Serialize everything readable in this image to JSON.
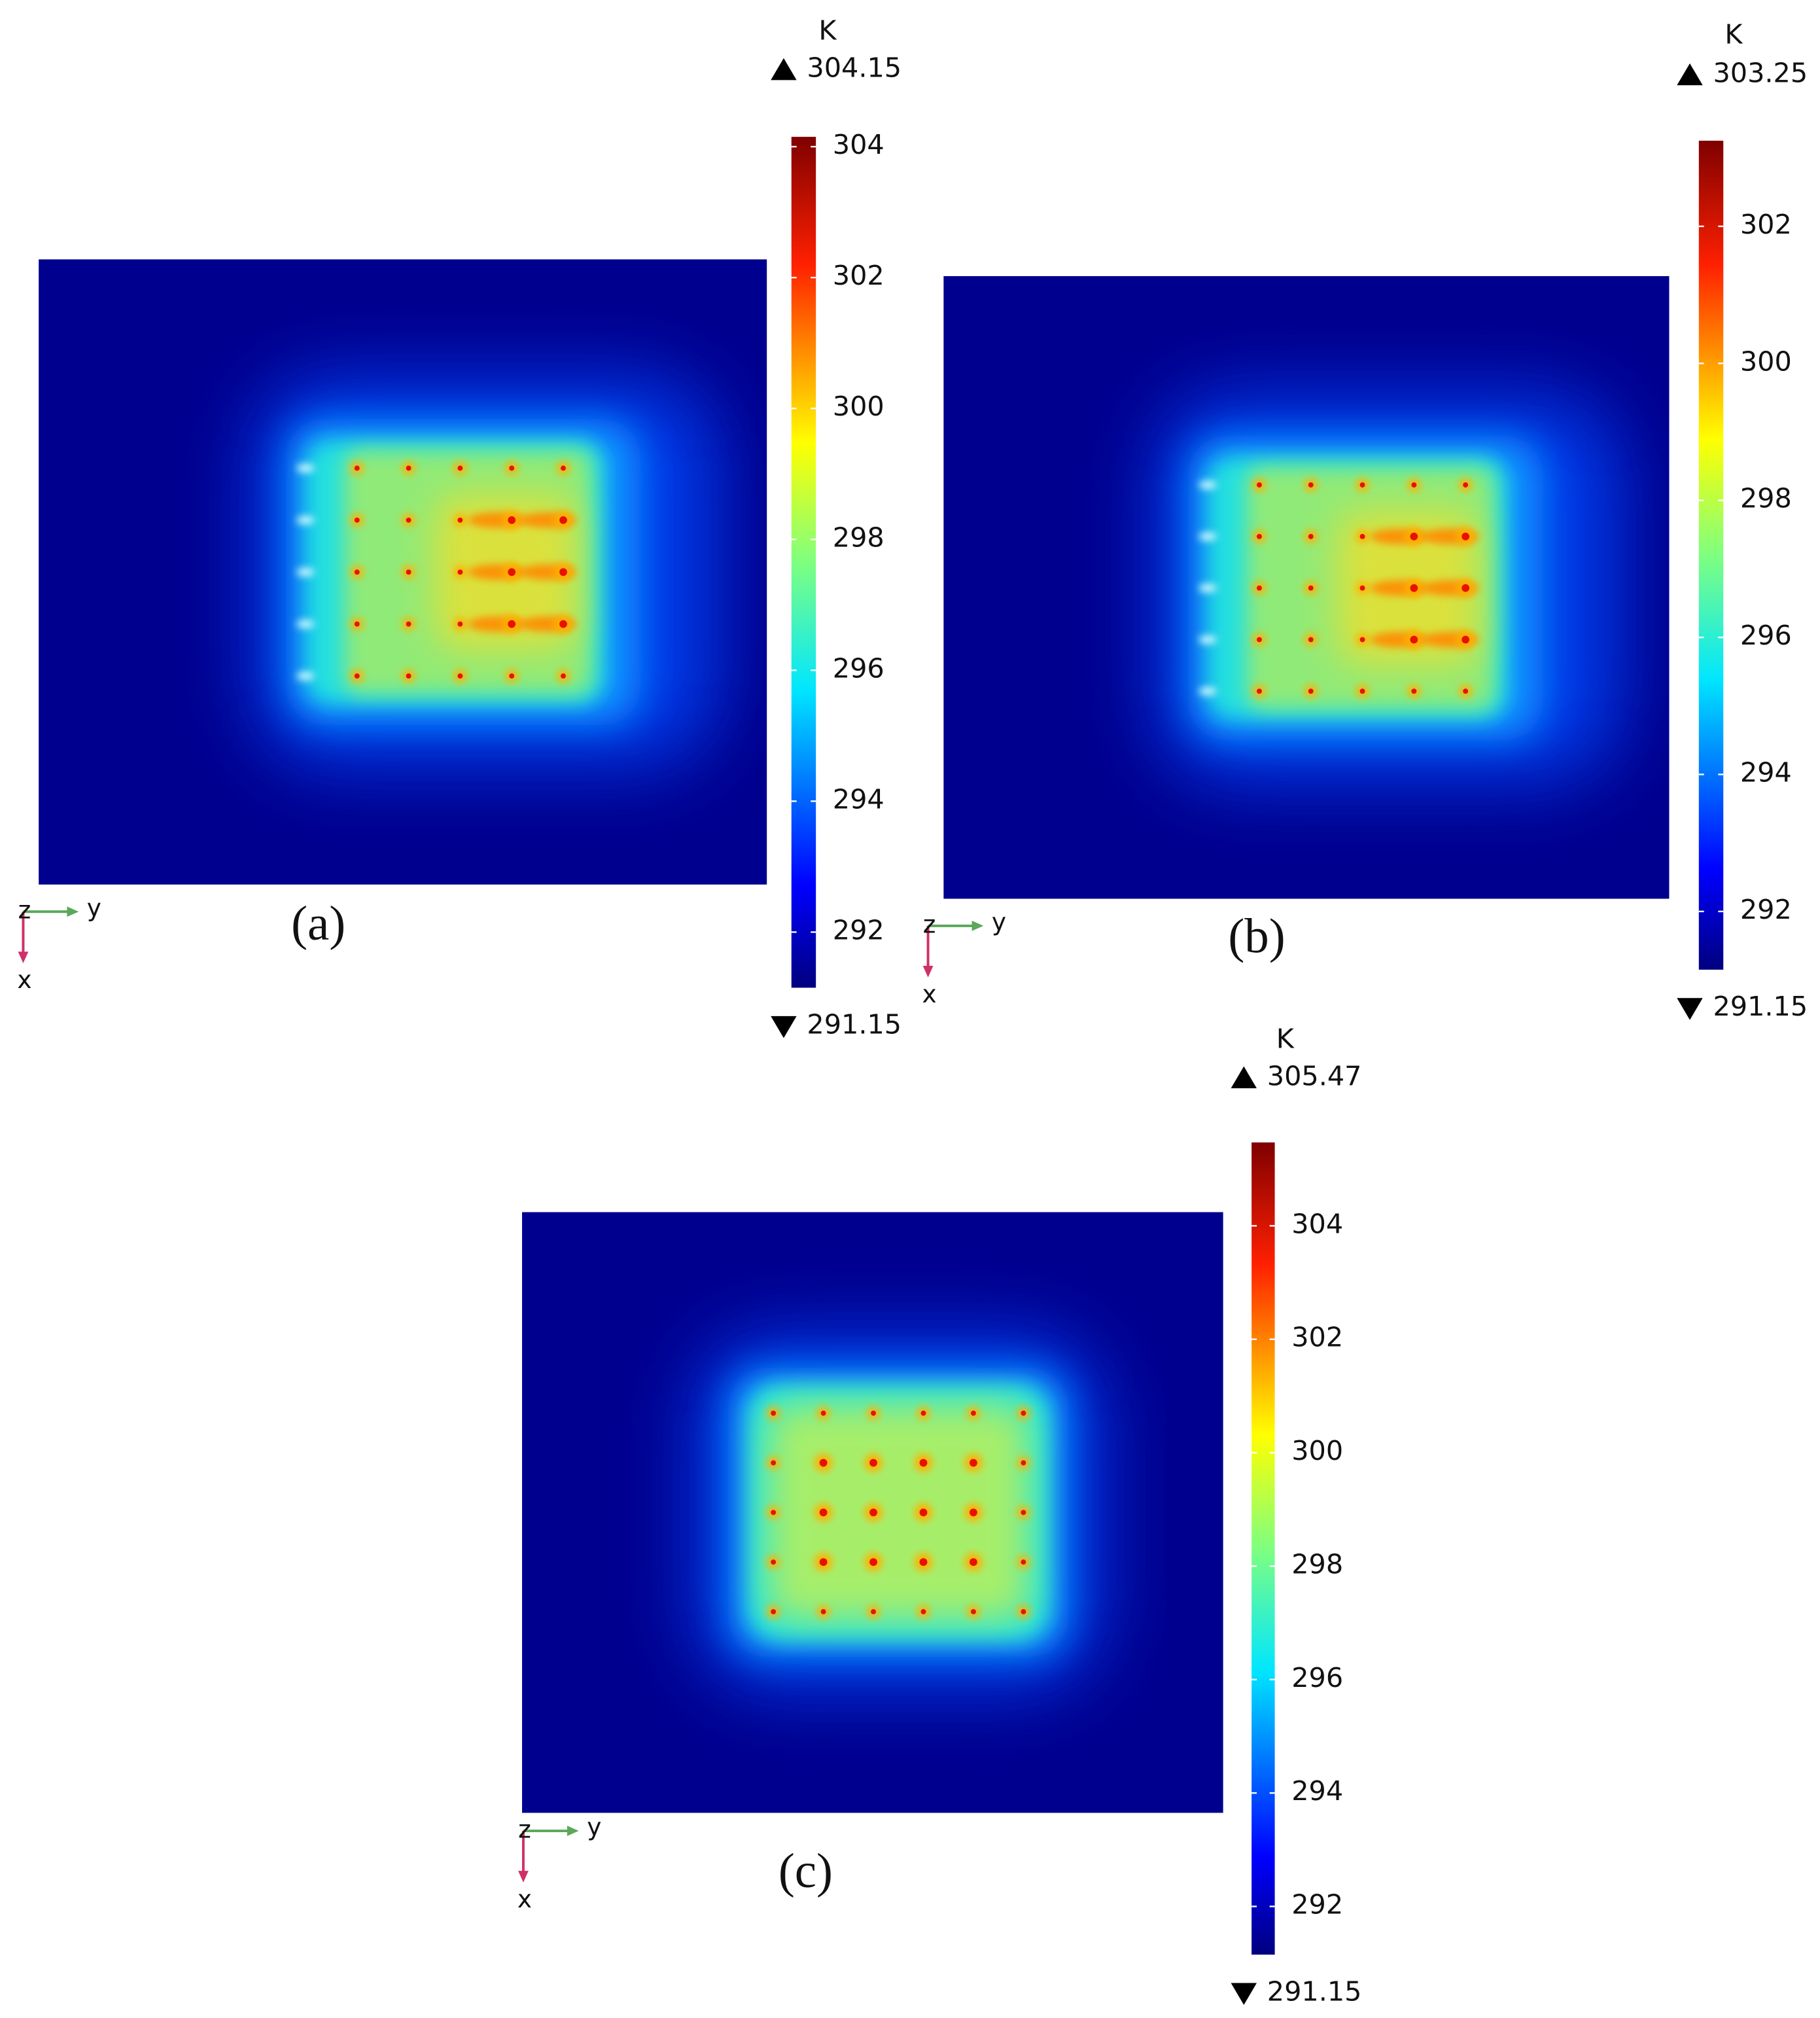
{
  "chart_data": [
    {
      "type": "heatmap",
      "label": "(a)",
      "unit": "K",
      "ylim": [
        291.15,
        304.15
      ],
      "yticks": [
        292,
        294,
        296,
        298,
        300,
        302,
        304
      ],
      "triad": [
        "z",
        "y",
        "x"
      ]
    },
    {
      "type": "heatmap",
      "label": "(b)",
      "unit": "K",
      "ylim": [
        291.15,
        303.25
      ],
      "yticks": [
        292,
        294,
        296,
        298,
        300,
        302
      ],
      "triad": [
        "z",
        "y",
        "x"
      ]
    },
    {
      "type": "heatmap",
      "label": "(c)",
      "unit": "K",
      "ylim": [
        291.15,
        305.47
      ],
      "yticks": [
        292,
        294,
        296,
        298,
        300,
        302,
        304
      ],
      "triad": [
        "z",
        "y",
        "x"
      ]
    }
  ]
}
